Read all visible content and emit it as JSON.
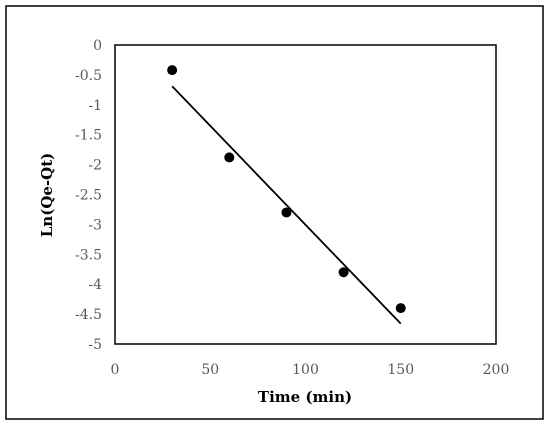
{
  "chart_data": {
    "type": "scatter",
    "title": "",
    "xlabel": "Time (min)",
    "ylabel": "Ln(Qe-Qt)",
    "xlim": [
      0,
      200
    ],
    "ylim": [
      -5,
      0
    ],
    "x_ticks": [
      0,
      50,
      100,
      150,
      200
    ],
    "y_ticks": [
      0,
      -0.5,
      -1,
      -1.5,
      -2,
      -2.5,
      -3,
      -3.5,
      -4,
      -4.5,
      -5
    ],
    "x_tick_labels": [
      "0",
      "50",
      "100",
      "150",
      "200"
    ],
    "y_tick_labels": [
      "0",
      "-0.5",
      "-1",
      "-1.5",
      "-2",
      "-2.5",
      "-3",
      "-3.5",
      "-4",
      "-4.5",
      "-5"
    ],
    "grid": false,
    "legend": "none",
    "series": [
      {
        "type": "scatter",
        "x": [
          30,
          60,
          90,
          120,
          150
        ],
        "y": [
          -0.42,
          -1.88,
          -2.8,
          -3.8,
          -4.4
        ],
        "color": "#000000"
      },
      {
        "type": "line",
        "trendline": "linear",
        "x": [
          30,
          150
        ],
        "y": [
          -0.69,
          -4.66
        ],
        "color": "#000000"
      }
    ]
  }
}
